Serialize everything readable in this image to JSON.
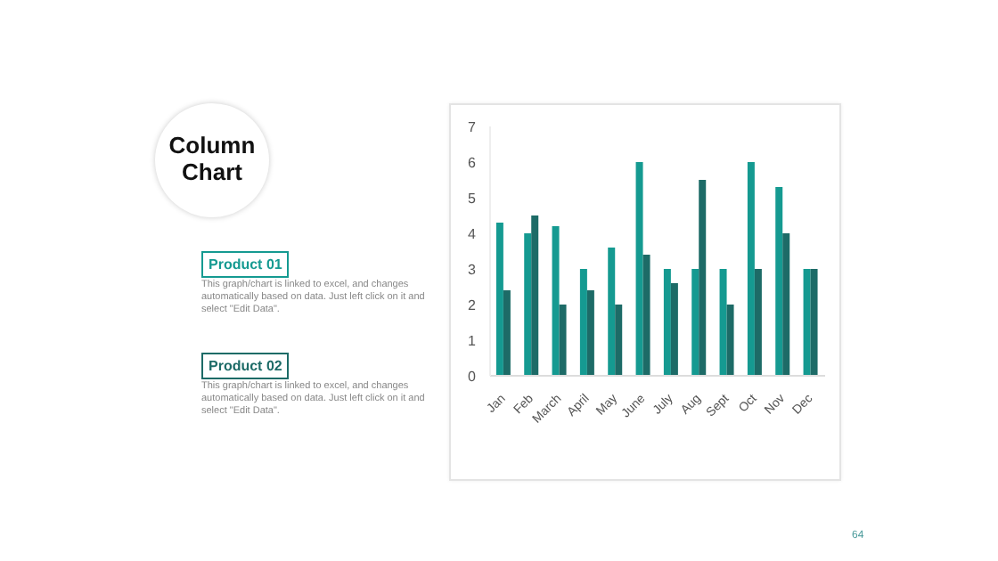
{
  "chart_data": {
    "type": "bar",
    "title": "Column Chart",
    "categories": [
      "Jan",
      "Feb",
      "March",
      "April",
      "May",
      "June",
      "July",
      "Aug",
      "Sept",
      "Oct",
      "Nov",
      "Dec"
    ],
    "series": [
      {
        "name": "Product 01",
        "color": "#159a91",
        "values": [
          4.3,
          4,
          4.2,
          3,
          3.6,
          6,
          3,
          3,
          3,
          6,
          5.3,
          3
        ]
      },
      {
        "name": "Product 02",
        "color": "#1d6b67",
        "values": [
          2.4,
          4.5,
          2,
          2.4,
          2,
          3.4,
          2.6,
          5.5,
          2,
          3,
          4,
          3
        ]
      }
    ],
    "ylim": [
      0,
      7
    ],
    "yticks": [
      0,
      1,
      2,
      3,
      4,
      5,
      6,
      7
    ],
    "legend": "left",
    "annotations": [
      "This graph/chart is linked to excel, and changes automatically based on data. Just left click on it and select \"Edit Data\".",
      "This graph/chart is linked to excel, and changes automatically based on data. Just left click on it and select \"Edit Data\".",
      "64"
    ]
  }
}
